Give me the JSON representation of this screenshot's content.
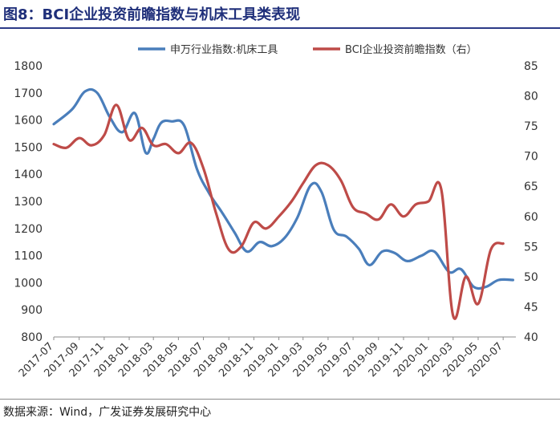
{
  "header": {
    "title": "图8：BCI企业投资前瞻指数与机床工具类表现"
  },
  "footer": {
    "source": "数据来源：Wind，广发证券发展研究中心"
  },
  "colors": {
    "series_left": "#4a7ebb",
    "series_right": "#be4b48",
    "title": "#1f2f7a"
  },
  "chart_data": {
    "type": "line",
    "legend_position": "top",
    "grid": false,
    "x_ticks": [
      "2017-07",
      "2017-09",
      "2017-11",
      "2018-01",
      "2018-03",
      "2018-05",
      "2018-07",
      "2018-09",
      "2018-11",
      "2019-01",
      "2019-03",
      "2019-05",
      "2019-07",
      "2019-09",
      "2019-11",
      "2020-01",
      "2020-03",
      "2020-05",
      "2020-07"
    ],
    "y_left": {
      "ticks": [
        800,
        900,
        1000,
        1100,
        1200,
        1300,
        1400,
        1500,
        1600,
        1700,
        1800
      ],
      "lim": [
        800,
        1800
      ]
    },
    "y_right": {
      "ticks": [
        40,
        45,
        50,
        55,
        60,
        65,
        70,
        75,
        80,
        85
      ],
      "lim": [
        40,
        85
      ]
    },
    "series": [
      {
        "name": "申万行业指数:机床工具",
        "axis": "left",
        "points": [
          [
            "2017-07-01",
            1585
          ],
          [
            "2017-08-15",
            1640
          ],
          [
            "2017-09-15",
            1705
          ],
          [
            "2017-10-15",
            1700
          ],
          [
            "2017-11-15",
            1610
          ],
          [
            "2017-12-15",
            1555
          ],
          [
            "2018-01-15",
            1625
          ],
          [
            "2018-02-10",
            1480
          ],
          [
            "2018-03-01",
            1530
          ],
          [
            "2018-03-20",
            1590
          ],
          [
            "2018-04-15",
            1595
          ],
          [
            "2018-05-15",
            1580
          ],
          [
            "2018-06-15",
            1420
          ],
          [
            "2018-07-15",
            1330
          ],
          [
            "2018-08-15",
            1260
          ],
          [
            "2018-09-15",
            1185
          ],
          [
            "2018-10-15",
            1115
          ],
          [
            "2018-11-15",
            1150
          ],
          [
            "2018-12-15",
            1135
          ],
          [
            "2019-01-15",
            1165
          ],
          [
            "2019-02-15",
            1240
          ],
          [
            "2019-03-20",
            1360
          ],
          [
            "2019-04-15",
            1335
          ],
          [
            "2019-05-15",
            1195
          ],
          [
            "2019-06-15",
            1170
          ],
          [
            "2019-07-15",
            1125
          ],
          [
            "2019-08-10",
            1065
          ],
          [
            "2019-09-10",
            1115
          ],
          [
            "2019-10-10",
            1110
          ],
          [
            "2019-11-10",
            1080
          ],
          [
            "2019-12-15",
            1100
          ],
          [
            "2020-01-15",
            1115
          ],
          [
            "2020-02-20",
            1040
          ],
          [
            "2020-03-20",
            1050
          ],
          [
            "2020-04-20",
            985
          ],
          [
            "2020-05-20",
            985
          ],
          [
            "2020-06-20",
            1010
          ],
          [
            "2020-07-25",
            1010
          ]
        ]
      },
      {
        "name": "BCI企业投资前瞻指数（右）",
        "axis": "right",
        "points": [
          [
            "2017-07-01",
            72.0
          ],
          [
            "2017-08-01",
            71.4
          ],
          [
            "2017-09-01",
            73.0
          ],
          [
            "2017-10-01",
            71.8
          ],
          [
            "2017-11-01",
            73.5
          ],
          [
            "2017-12-01",
            78.5
          ],
          [
            "2018-01-01",
            72.7
          ],
          [
            "2018-02-01",
            74.7
          ],
          [
            "2018-03-01",
            71.8
          ],
          [
            "2018-04-01",
            72.0
          ],
          [
            "2018-05-01",
            70.5
          ],
          [
            "2018-06-01",
            72.2
          ],
          [
            "2018-07-01",
            68.0
          ],
          [
            "2018-08-01",
            60.5
          ],
          [
            "2018-09-01",
            54.5
          ],
          [
            "2018-10-01",
            55.0
          ],
          [
            "2018-11-01",
            59.0
          ],
          [
            "2018-12-01",
            58.0
          ],
          [
            "2019-01-01",
            60.0
          ],
          [
            "2019-02-01",
            62.5
          ],
          [
            "2019-03-01",
            65.5
          ],
          [
            "2019-04-01",
            68.5
          ],
          [
            "2019-05-01",
            68.5
          ],
          [
            "2019-06-01",
            66.0
          ],
          [
            "2019-07-01",
            61.5
          ],
          [
            "2019-08-01",
            60.5
          ],
          [
            "2019-09-01",
            59.5
          ],
          [
            "2019-10-01",
            62.0
          ],
          [
            "2019-11-01",
            60.0
          ],
          [
            "2019-12-01",
            62.0
          ],
          [
            "2020-01-01",
            62.5
          ],
          [
            "2020-02-01",
            64.5
          ],
          [
            "2020-03-01",
            43.5
          ],
          [
            "2020-04-01",
            50.0
          ],
          [
            "2020-05-01",
            45.5
          ],
          [
            "2020-06-01",
            54.5
          ],
          [
            "2020-07-01",
            55.5
          ]
        ]
      }
    ]
  }
}
